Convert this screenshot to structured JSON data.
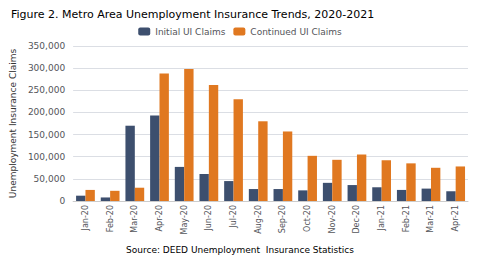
{
  "chart_data": {
    "type": "bar",
    "title": "Figure 2. Metro Area Unemployment Insurance Trends, 2020-2021",
    "categories": [
      "Jan-20",
      "Feb-20",
      "Mar-20",
      "Apr-20",
      "May-20",
      "Jun-20",
      "Jul-20",
      "Aug-20",
      "Sep-20",
      "Oct-20",
      "Nov-20",
      "Dec-20",
      "Jan-21",
      "Feb-21",
      "Mar-21",
      "Apr-21"
    ],
    "series": [
      {
        "name": "Initial UI Claims",
        "color": "#3D4F6E",
        "values": [
          12000,
          8000,
          170000,
          193000,
          77000,
          61000,
          45000,
          27000,
          27000,
          24000,
          41000,
          36000,
          31000,
          25000,
          28000,
          22000
        ]
      },
      {
        "name": "Continued UI Claims",
        "color": "#E07820",
        "values": [
          25000,
          23000,
          30000,
          288000,
          298000,
          262000,
          230000,
          180000,
          157000,
          102000,
          93000,
          105000,
          92000,
          85000,
          75000,
          78000
        ]
      }
    ],
    "ylabel": "Unemployment Insurance Claims",
    "source": "Source: DEED Unemployment  Insurance Statistics",
    "ylim": [
      0,
      350000
    ],
    "yticks": [
      0,
      {
        "value": 50000,
        "label": "50,000"
      },
      {
        "value": 100000,
        "label": "100,000"
      },
      {
        "value": 150000,
        "label": "150,000"
      },
      {
        "value": 200000,
        "label": "200,000"
      },
      {
        "value": 250000,
        "label": "250,000"
      },
      {
        "value": 300000,
        "label": "300,000"
      },
      {
        "value": 350000,
        "label": "350,000"
      }
    ],
    "grid": true,
    "legend": "top"
  }
}
